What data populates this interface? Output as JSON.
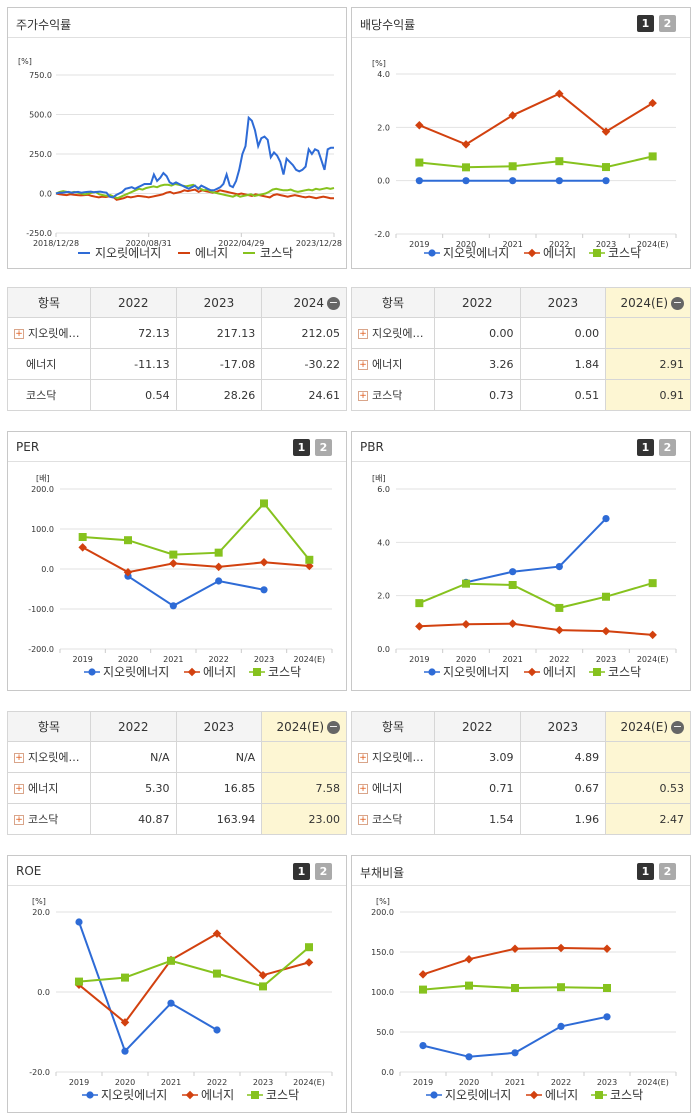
{
  "colors": {
    "series1": "#2e6bd6",
    "series2": "#d2410f",
    "series3": "#86c21e"
  },
  "legend": [
    "지오릿에너지",
    "에너지",
    "코스닥"
  ],
  "charts": {
    "stock": {
      "title": "주가수익률",
      "chart_data": {
        "type": "line",
        "unit": "[%]",
        "ylim": [
          -250,
          750
        ],
        "yticks": [
          "750.0",
          "500.0",
          "250.0",
          "0.0",
          "-250.0"
        ],
        "xticks": [
          "2018/12/28",
          "2020/08/31",
          "2022/04/29",
          "2023/12/28"
        ],
        "series": [
          {
            "name": "지오릿에너지",
            "values": [
              0,
              5,
              5,
              8,
              10,
              5,
              8,
              10,
              5,
              8,
              10,
              12,
              8,
              10,
              12,
              8,
              5,
              -20,
              -25,
              -10,
              0,
              10,
              30,
              35,
              40,
              30,
              40,
              50,
              60,
              60,
              60,
              120,
              80,
              100,
              130,
              110,
              70,
              60,
              70,
              60,
              50,
              40,
              30,
              40,
              50,
              30,
              50,
              40,
              30,
              20,
              20,
              30,
              40,
              60,
              120,
              50,
              40,
              80,
              150,
              250,
              300,
              480,
              460,
              400,
              300,
              350,
              360,
              340,
              230,
              260,
              240,
              200,
              120,
              220,
              200,
              180,
              150,
              140,
              150,
              170,
              280,
              250,
              280,
              270,
              210,
              150,
              280,
              290,
              290
            ]
          },
          {
            "name": "에너지",
            "values": [
              0,
              -5,
              -8,
              -10,
              -5,
              -8,
              -10,
              -12,
              -10,
              -8,
              -15,
              -20,
              -25,
              -20,
              -22,
              -18,
              -20,
              -40,
              -35,
              -30,
              -20,
              -25,
              -20,
              -15,
              -18,
              -20,
              -25,
              -20,
              -15,
              -10,
              -5,
              5,
              10,
              0,
              5,
              10,
              20,
              15,
              20,
              25,
              10,
              20,
              15,
              10,
              5,
              10,
              20,
              15,
              10,
              5,
              0,
              -5,
              0,
              -5,
              -10,
              -15,
              -5,
              -10,
              -15,
              -20,
              -25,
              -10,
              -5,
              -10,
              -15,
              -20,
              -15,
              -10,
              -15,
              -20,
              -25,
              -20,
              -25,
              -30,
              -25,
              -20,
              -25,
              -30,
              -30
            ]
          },
          {
            "name": "코스닥",
            "values": [
              0,
              10,
              15,
              10,
              5,
              10,
              5,
              0,
              -5,
              0,
              5,
              10,
              -5,
              -10,
              -15,
              -10,
              -20,
              -30,
              -20,
              -10,
              0,
              10,
              20,
              30,
              25,
              35,
              40,
              45,
              40,
              50,
              55,
              55,
              50,
              60,
              55,
              50,
              45,
              50,
              55,
              40,
              30,
              20,
              25,
              10,
              5,
              0,
              -5,
              -10,
              -15,
              -20,
              -10,
              -20,
              -15,
              -10,
              -5,
              -15,
              -10,
              -5,
              0,
              10,
              25,
              30,
              25,
              20,
              20,
              25,
              15,
              10,
              15,
              20,
              25,
              20,
              30,
              25,
              30,
              35,
              30,
              35
            ]
          }
        ]
      }
    },
    "dividend": {
      "title": "배당수익률",
      "chart_data": {
        "type": "line",
        "unit": "[%]",
        "ylim": [
          -2,
          4
        ],
        "yticks": [
          "4.0",
          "2.0",
          "0.0",
          "-2.0"
        ],
        "categories": [
          "2019",
          "2020",
          "2021",
          "2022",
          "2023",
          "2024(E)"
        ],
        "series": [
          {
            "name": "지오릿에너지",
            "values": [
              0,
              0,
              0,
              0,
              0,
              null
            ]
          },
          {
            "name": "에너지",
            "values": [
              2.08,
              1.36,
              2.45,
              3.26,
              1.84,
              2.91
            ]
          },
          {
            "name": "코스닥",
            "values": [
              0.68,
              0.5,
              0.54,
              0.73,
              0.51,
              0.91
            ]
          }
        ]
      }
    },
    "per": {
      "title": "PER",
      "chart_data": {
        "type": "line",
        "unit": "[배]",
        "ylim": [
          -200,
          200
        ],
        "yticks": [
          "200.0",
          "100.0",
          "0.0",
          "-100.0",
          "-200.0"
        ],
        "categories": [
          "2019",
          "2020",
          "2021",
          "2022",
          "2023",
          "2024(E)"
        ],
        "series": [
          {
            "name": "지오릿에너지",
            "values": [
              null,
              -18,
              -92,
              -30,
              -52,
              null
            ]
          },
          {
            "name": "에너지",
            "values": [
              54,
              -8,
              14,
              5.3,
              16.85,
              7.58
            ]
          },
          {
            "name": "코스닥",
            "values": [
              80,
              72,
              36,
              40.87,
              163.94,
              23.0
            ]
          }
        ]
      }
    },
    "pbr": {
      "title": "PBR",
      "chart_data": {
        "type": "line",
        "unit": "[배]",
        "ylim": [
          0,
          6
        ],
        "yticks": [
          "6.0",
          "4.0",
          "2.0",
          "0.0"
        ],
        "categories": [
          "2019",
          "2020",
          "2021",
          "2022",
          "2023",
          "2024(E)"
        ],
        "series": [
          {
            "name": "지오릿에너지",
            "values": [
              null,
              2.5,
              2.9,
              3.09,
              4.89,
              null
            ]
          },
          {
            "name": "에너지",
            "values": [
              0.85,
              0.93,
              0.95,
              0.71,
              0.67,
              0.53
            ]
          },
          {
            "name": "코스닥",
            "values": [
              1.72,
              2.45,
              2.4,
              1.54,
              1.96,
              2.47
            ]
          }
        ]
      }
    },
    "roe": {
      "title": "ROE",
      "chart_data": {
        "type": "line",
        "unit": "[%]",
        "ylim": [
          -20,
          20
        ],
        "yticks": [
          "20.0",
          "0.0",
          "-20.0"
        ],
        "categories": [
          "2019",
          "2020",
          "2021",
          "2022",
          "2023",
          "2024(E)"
        ],
        "series": [
          {
            "name": "지오릿에너지",
            "values": [
              17.5,
              -14.8,
              -2.8,
              -9.5,
              null,
              null
            ]
          },
          {
            "name": "에너지",
            "values": [
              1.8,
              -7.6,
              8.0,
              14.6,
              4.2,
              7.4
            ]
          },
          {
            "name": "코스닥",
            "values": [
              2.6,
              3.6,
              7.8,
              4.6,
              1.4,
              11.2
            ]
          }
        ]
      }
    },
    "debt": {
      "title": "부채비율",
      "chart_data": {
        "type": "line",
        "unit": "[%]",
        "ylim": [
          0,
          200
        ],
        "yticks": [
          "200.0",
          "150.0",
          "100.0",
          "50.0",
          "0.0"
        ],
        "categories": [
          "2019",
          "2020",
          "2021",
          "2022",
          "2023",
          "2024(E)"
        ],
        "series": [
          {
            "name": "지오릿에너지",
            "values": [
              33,
              19,
              24,
              57,
              69,
              null
            ]
          },
          {
            "name": "에너지",
            "values": [
              122,
              141,
              154,
              155,
              154,
              null
            ]
          },
          {
            "name": "코스닥",
            "values": [
              103,
              108,
              105,
              106,
              105,
              null
            ]
          }
        ]
      }
    }
  },
  "tables": {
    "stock": {
      "headers": [
        "항목",
        "2022",
        "2023",
        "2024"
      ],
      "rows": [
        {
          "name": "지오릿에…",
          "v": [
            "72.13",
            "217.13",
            "212.05"
          ],
          "plus": true
        },
        {
          "name": "에너지",
          "v": [
            "-11.13",
            "-17.08",
            "-30.22"
          ],
          "plus": false
        },
        {
          "name": "코스닥",
          "v": [
            "0.54",
            "28.26",
            "24.61"
          ],
          "plus": false
        }
      ]
    },
    "dividend": {
      "headers": [
        "항목",
        "2022",
        "2023",
        "2024(E)"
      ],
      "rows": [
        {
          "name": "지오릿에…",
          "v": [
            "0.00",
            "0.00",
            ""
          ],
          "plus": true
        },
        {
          "name": "에너지",
          "v": [
            "3.26",
            "1.84",
            "2.91"
          ],
          "plus": true
        },
        {
          "name": "코스닥",
          "v": [
            "0.73",
            "0.51",
            "0.91"
          ],
          "plus": true
        }
      ]
    },
    "per": {
      "headers": [
        "항목",
        "2022",
        "2023",
        "2024(E)"
      ],
      "rows": [
        {
          "name": "지오릿에…",
          "v": [
            "N/A",
            "N/A",
            ""
          ],
          "plus": true
        },
        {
          "name": "에너지",
          "v": [
            "5.30",
            "16.85",
            "7.58"
          ],
          "plus": true
        },
        {
          "name": "코스닥",
          "v": [
            "40.87",
            "163.94",
            "23.00"
          ],
          "plus": true
        }
      ]
    },
    "pbr": {
      "headers": [
        "항목",
        "2022",
        "2023",
        "2024(E)"
      ],
      "rows": [
        {
          "name": "지오릿에…",
          "v": [
            "3.09",
            "4.89",
            ""
          ],
          "plus": true
        },
        {
          "name": "에너지",
          "v": [
            "0.71",
            "0.67",
            "0.53"
          ],
          "plus": true
        },
        {
          "name": "코스닥",
          "v": [
            "1.54",
            "1.96",
            "2.47"
          ],
          "plus": true
        }
      ]
    }
  },
  "pager": {
    "p1": "1",
    "p2": "2"
  },
  "icons": {
    "plus": "+",
    "minus": "−"
  }
}
